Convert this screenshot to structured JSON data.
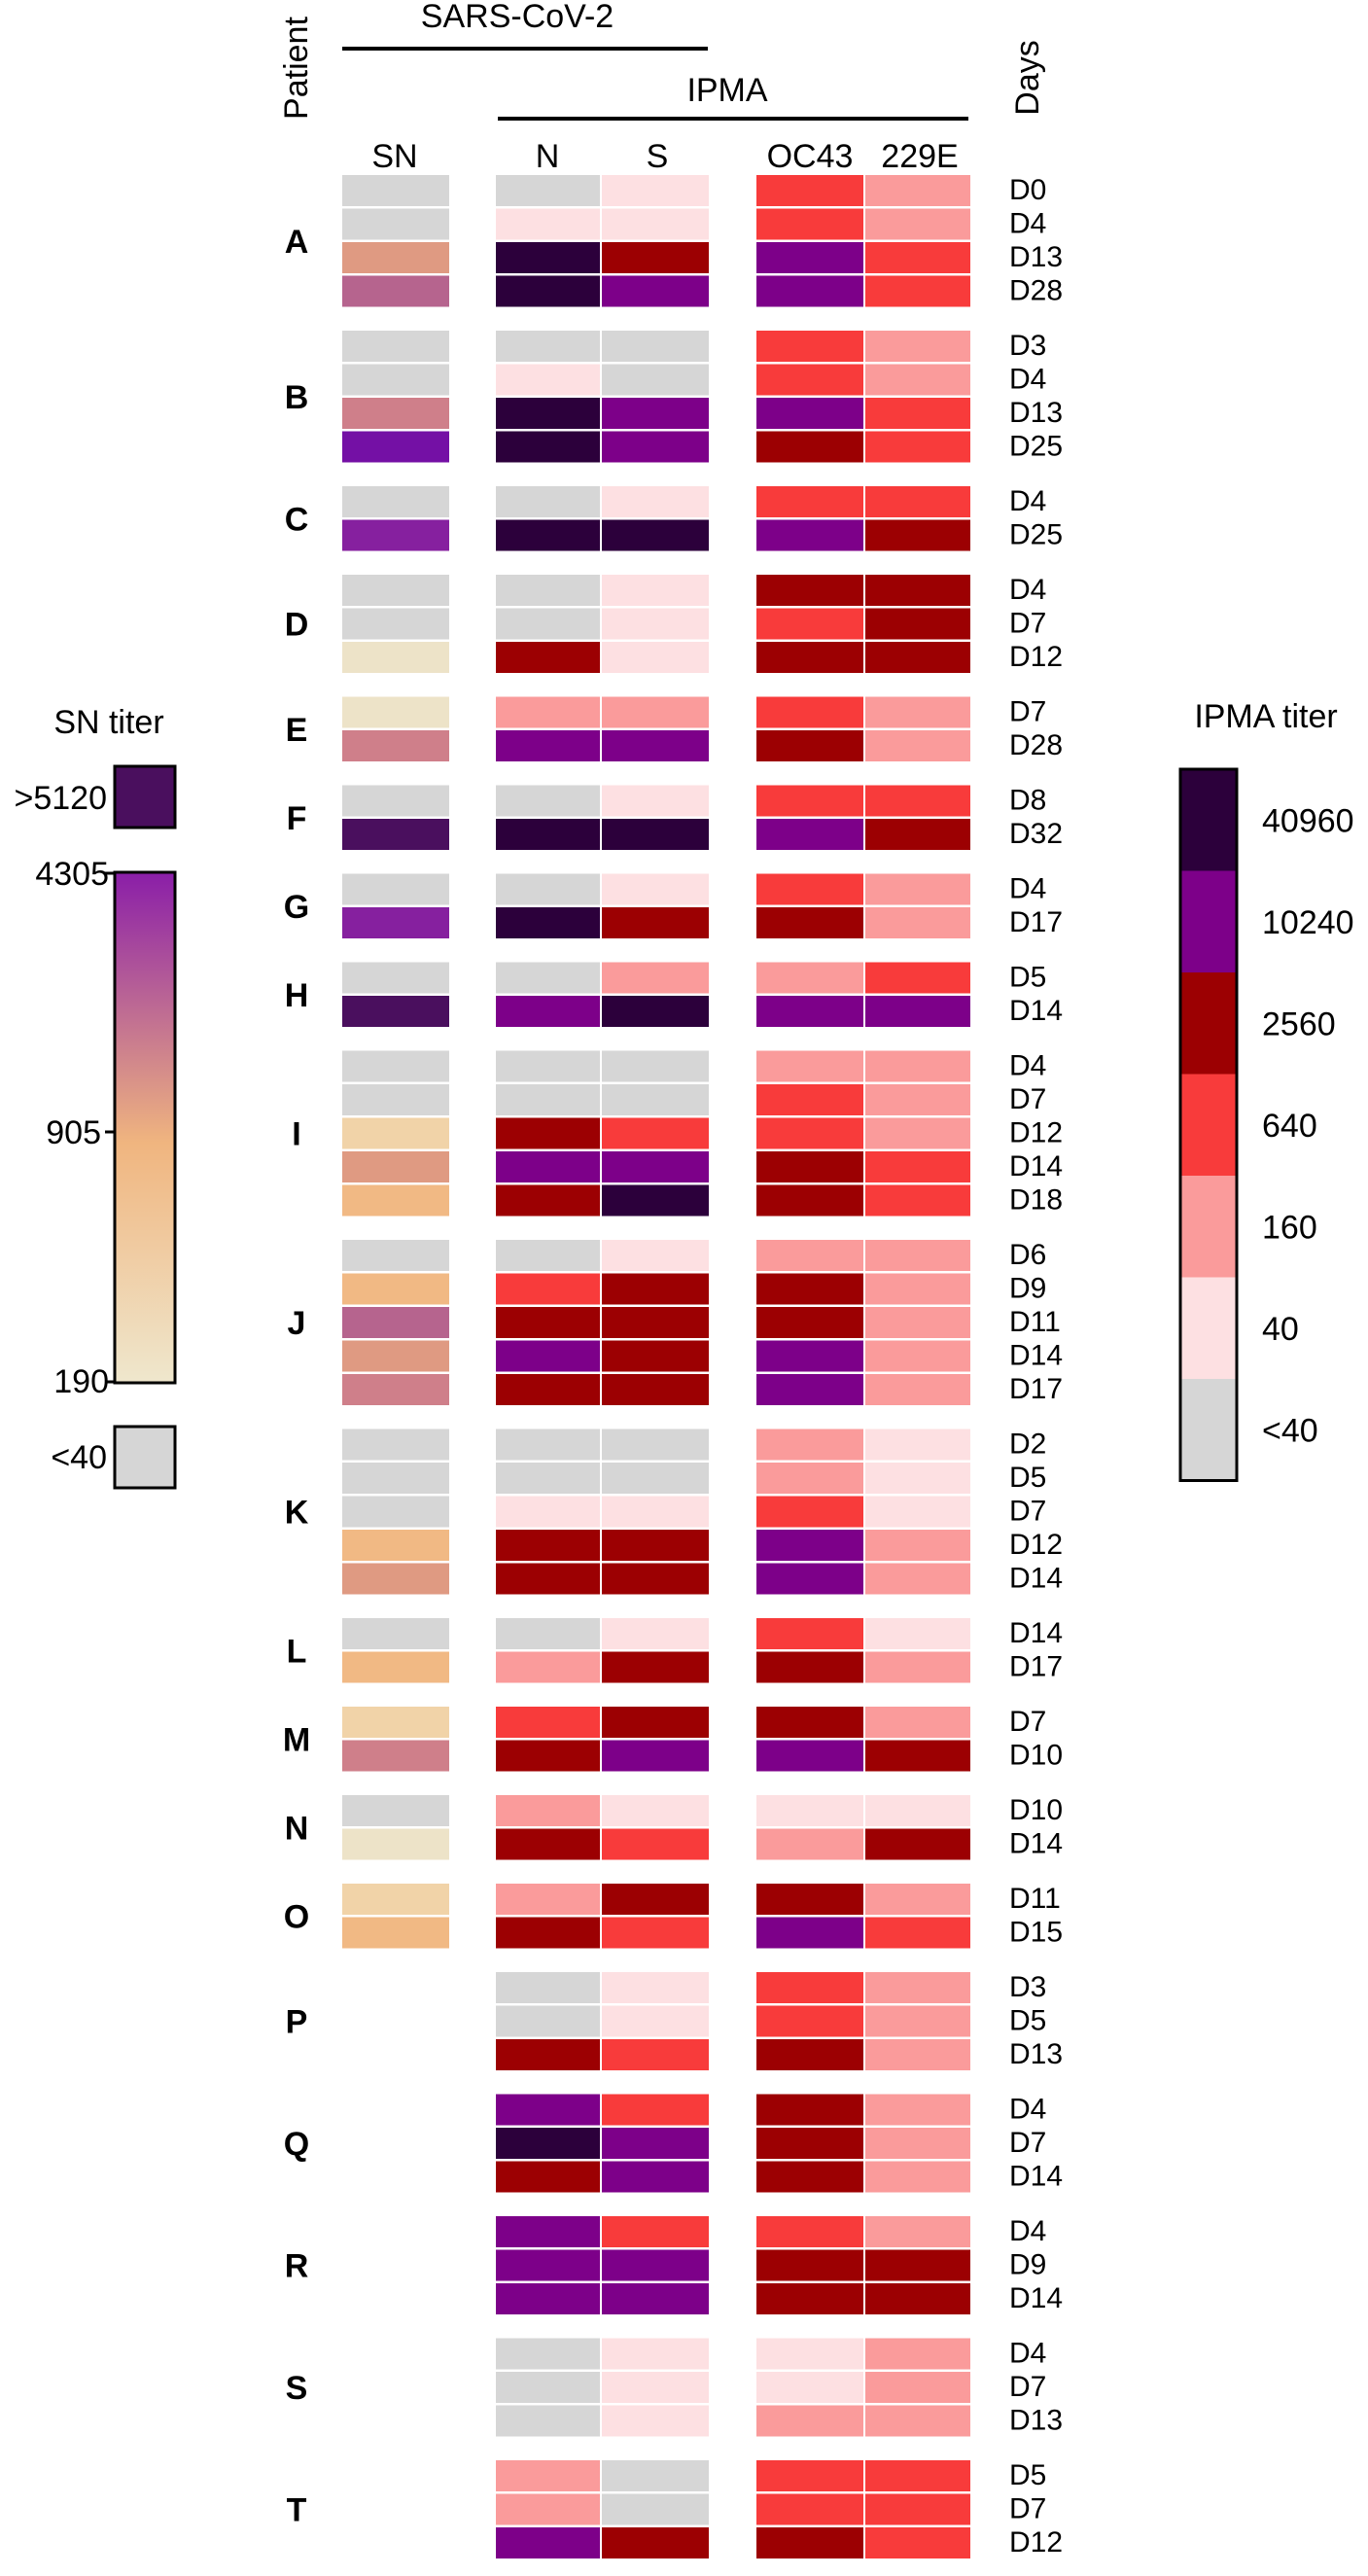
{
  "chart_data": {
    "type": "heatmap",
    "header": {
      "patient_label": "Patient",
      "group_label": "SARS-CoV-2",
      "subgroup_label": "IPMA",
      "days_label": "Days",
      "columns": [
        "SN",
        "N",
        "S",
        "OC43",
        "229E"
      ]
    },
    "legend_sn": {
      "title": "SN titer",
      "top_box_label": ">5120",
      "top_value": "4305",
      "mid_value": "905",
      "bottom_value": "190",
      "below_label": "<40",
      "colors": {
        "above": "#4a0f5e",
        "top": "#8a1ea8",
        "mid": "#f0b57f",
        "bottom": "#efe7cd",
        "below": "#d6d6d6"
      }
    },
    "legend_ipma": {
      "title": "IPMA titer",
      "bands": [
        {
          "label": "40960",
          "color": "#2c003b"
        },
        {
          "label": "10240",
          "color": "#7d0089"
        },
        {
          "label": "2560",
          "color": "#9c0002"
        },
        {
          "label": "640",
          "color": "#f83b3b"
        },
        {
          "label": "160",
          "color": "#fa9b9b"
        },
        {
          "label": "40",
          "color": "#fde0e2"
        },
        {
          "label": "<40",
          "color": "#d6d6d6"
        }
      ]
    },
    "color_key": {
      "g": "#d6d6d6",
      "p": "#fde0e2",
      "l": "#fa9b9b",
      "r": "#f83b3b",
      "d": "#9c0002",
      "v": "#7d0089",
      "k": "#2c003b",
      "s1": "#ede3c8",
      "s2": "#f1d3a8",
      "s3": "#f1b984",
      "s4": "#df9a82",
      "s5": "#cf7f8a",
      "s6": "#b6648e",
      "s7": "#86209f",
      "s8": "#7410a5",
      "s9": "#4a0f5e"
    },
    "patients": [
      {
        "id": "A",
        "rows": [
          {
            "day": "D0",
            "SN": "g",
            "N": "g",
            "S": "p",
            "OC43": "r",
            "E229": "l"
          },
          {
            "day": "D4",
            "SN": "g",
            "N": "p",
            "S": "p",
            "OC43": "r",
            "E229": "l"
          },
          {
            "day": "D13",
            "SN": "s4",
            "N": "k",
            "S": "d",
            "OC43": "v",
            "E229": "r"
          },
          {
            "day": "D28",
            "SN": "s6",
            "N": "k",
            "S": "v",
            "OC43": "v",
            "E229": "r"
          }
        ]
      },
      {
        "id": "B",
        "rows": [
          {
            "day": "D3",
            "SN": "g",
            "N": "g",
            "S": "g",
            "OC43": "r",
            "E229": "l"
          },
          {
            "day": "D4",
            "SN": "g",
            "N": "p",
            "S": "g",
            "OC43": "r",
            "E229": "l"
          },
          {
            "day": "D13",
            "SN": "s5",
            "N": "k",
            "S": "v",
            "OC43": "v",
            "E229": "r"
          },
          {
            "day": "D25",
            "SN": "s8",
            "N": "k",
            "S": "v",
            "OC43": "d",
            "E229": "r"
          }
        ]
      },
      {
        "id": "C",
        "rows": [
          {
            "day": "D4",
            "SN": "g",
            "N": "g",
            "S": "p",
            "OC43": "r",
            "E229": "r"
          },
          {
            "day": "D25",
            "SN": "s7",
            "N": "k",
            "S": "k",
            "OC43": "v",
            "E229": "d"
          }
        ]
      },
      {
        "id": "D",
        "rows": [
          {
            "day": "D4",
            "SN": "g",
            "N": "g",
            "S": "p",
            "OC43": "d",
            "E229": "d"
          },
          {
            "day": "D7",
            "SN": "g",
            "N": "g",
            "S": "p",
            "OC43": "r",
            "E229": "d"
          },
          {
            "day": "D12",
            "SN": "s1",
            "N": "d",
            "S": "p",
            "OC43": "d",
            "E229": "d"
          }
        ]
      },
      {
        "id": "E",
        "rows": [
          {
            "day": "D7",
            "SN": "s1",
            "N": "l",
            "S": "l",
            "OC43": "r",
            "E229": "l"
          },
          {
            "day": "D28",
            "SN": "s5",
            "N": "v",
            "S": "v",
            "OC43": "d",
            "E229": "l"
          }
        ]
      },
      {
        "id": "F",
        "rows": [
          {
            "day": "D8",
            "SN": "g",
            "N": "g",
            "S": "p",
            "OC43": "r",
            "E229": "r"
          },
          {
            "day": "D32",
            "SN": "s9",
            "N": "k",
            "S": "k",
            "OC43": "v",
            "E229": "d"
          }
        ]
      },
      {
        "id": "G",
        "rows": [
          {
            "day": "D4",
            "SN": "g",
            "N": "g",
            "S": "p",
            "OC43": "r",
            "E229": "l"
          },
          {
            "day": "D17",
            "SN": "s7",
            "N": "k",
            "S": "d",
            "OC43": "d",
            "E229": "l"
          }
        ]
      },
      {
        "id": "H",
        "rows": [
          {
            "day": "D5",
            "SN": "g",
            "N": "g",
            "S": "l",
            "OC43": "l",
            "E229": "r"
          },
          {
            "day": "D14",
            "SN": "s9",
            "N": "v",
            "S": "k",
            "OC43": "v",
            "E229": "v"
          }
        ]
      },
      {
        "id": "I",
        "rows": [
          {
            "day": "D4",
            "SN": "g",
            "N": "g",
            "S": "g",
            "OC43": "l",
            "E229": "l"
          },
          {
            "day": "D7",
            "SN": "g",
            "N": "g",
            "S": "g",
            "OC43": "r",
            "E229": "l"
          },
          {
            "day": "D12",
            "SN": "s2",
            "N": "d",
            "S": "r",
            "OC43": "r",
            "E229": "l"
          },
          {
            "day": "D14",
            "SN": "s4",
            "N": "v",
            "S": "v",
            "OC43": "d",
            "E229": "r"
          },
          {
            "day": "D18",
            "SN": "s3",
            "N": "d",
            "S": "k",
            "OC43": "d",
            "E229": "r"
          }
        ]
      },
      {
        "id": "J",
        "rows": [
          {
            "day": "D6",
            "SN": "g",
            "N": "g",
            "S": "p",
            "OC43": "l",
            "E229": "l"
          },
          {
            "day": "D9",
            "SN": "s3",
            "N": "r",
            "S": "d",
            "OC43": "d",
            "E229": "l"
          },
          {
            "day": "D11",
            "SN": "s6",
            "N": "d",
            "S": "d",
            "OC43": "d",
            "E229": "l"
          },
          {
            "day": "D14",
            "SN": "s4",
            "N": "v",
            "S": "d",
            "OC43": "v",
            "E229": "l"
          },
          {
            "day": "D17",
            "SN": "s5",
            "N": "d",
            "S": "d",
            "OC43": "v",
            "E229": "l"
          }
        ]
      },
      {
        "id": "K",
        "rows": [
          {
            "day": "D2",
            "SN": "g",
            "N": "g",
            "S": "g",
            "OC43": "l",
            "E229": "p"
          },
          {
            "day": "D5",
            "SN": "g",
            "N": "g",
            "S": "g",
            "OC43": "l",
            "E229": "p"
          },
          {
            "day": "D7",
            "SN": "g",
            "N": "p",
            "S": "p",
            "OC43": "r",
            "E229": "p"
          },
          {
            "day": "D12",
            "SN": "s3",
            "N": "d",
            "S": "d",
            "OC43": "v",
            "E229": "l"
          },
          {
            "day": "D14",
            "SN": "s4",
            "N": "d",
            "S": "d",
            "OC43": "v",
            "E229": "l"
          }
        ]
      },
      {
        "id": "L",
        "rows": [
          {
            "day": "D14",
            "SN": "g",
            "N": "g",
            "S": "p",
            "OC43": "r",
            "E229": "p"
          },
          {
            "day": "D17",
            "SN": "s3",
            "N": "l",
            "S": "d",
            "OC43": "d",
            "E229": "l"
          }
        ]
      },
      {
        "id": "M",
        "rows": [
          {
            "day": "D7",
            "SN": "s2",
            "N": "r",
            "S": "d",
            "OC43": "d",
            "E229": "l"
          },
          {
            "day": "D10",
            "SN": "s5",
            "N": "d",
            "S": "v",
            "OC43": "v",
            "E229": "d"
          }
        ]
      },
      {
        "id": "N",
        "rows": [
          {
            "day": "D10",
            "SN": "g",
            "N": "l",
            "S": "p",
            "OC43": "p",
            "E229": "p"
          },
          {
            "day": "D14",
            "SN": "s1",
            "N": "d",
            "S": "r",
            "OC43": "l",
            "E229": "d"
          }
        ]
      },
      {
        "id": "O",
        "rows": [
          {
            "day": "D11",
            "SN": "s2",
            "N": "l",
            "S": "d",
            "OC43": "d",
            "E229": "l"
          },
          {
            "day": "D15",
            "SN": "s3",
            "N": "d",
            "S": "r",
            "OC43": "v",
            "E229": "r"
          }
        ]
      },
      {
        "id": "P",
        "rows": [
          {
            "day": "D3",
            "SN": null,
            "N": "g",
            "S": "p",
            "OC43": "r",
            "E229": "l"
          },
          {
            "day": "D5",
            "SN": null,
            "N": "g",
            "S": "p",
            "OC43": "r",
            "E229": "l"
          },
          {
            "day": "D13",
            "SN": null,
            "N": "d",
            "S": "r",
            "OC43": "d",
            "E229": "l"
          }
        ]
      },
      {
        "id": "Q",
        "rows": [
          {
            "day": "D4",
            "SN": null,
            "N": "v",
            "S": "r",
            "OC43": "d",
            "E229": "l"
          },
          {
            "day": "D7",
            "SN": null,
            "N": "k",
            "S": "v",
            "OC43": "d",
            "E229": "l"
          },
          {
            "day": "D14",
            "SN": null,
            "N": "d",
            "S": "v",
            "OC43": "d",
            "E229": "l"
          }
        ]
      },
      {
        "id": "R",
        "rows": [
          {
            "day": "D4",
            "SN": null,
            "N": "v",
            "S": "r",
            "OC43": "r",
            "E229": "l"
          },
          {
            "day": "D9",
            "SN": null,
            "N": "v",
            "S": "v",
            "OC43": "d",
            "E229": "d"
          },
          {
            "day": "D14",
            "SN": null,
            "N": "v",
            "S": "v",
            "OC43": "d",
            "E229": "d"
          }
        ]
      },
      {
        "id": "S",
        "rows": [
          {
            "day": "D4",
            "SN": null,
            "N": "g",
            "S": "p",
            "OC43": "p",
            "E229": "l"
          },
          {
            "day": "D7",
            "SN": null,
            "N": "g",
            "S": "p",
            "OC43": "p",
            "E229": "l"
          },
          {
            "day": "D13",
            "SN": null,
            "N": "g",
            "S": "p",
            "OC43": "l",
            "E229": "l"
          }
        ]
      },
      {
        "id": "T",
        "rows": [
          {
            "day": "D5",
            "SN": null,
            "N": "l",
            "S": "g",
            "OC43": "r",
            "E229": "r"
          },
          {
            "day": "D7",
            "SN": null,
            "N": "l",
            "S": "g",
            "OC43": "r",
            "E229": "r"
          },
          {
            "day": "D12",
            "SN": null,
            "N": "v",
            "S": "d",
            "OC43": "d",
            "E229": "r"
          }
        ]
      }
    ]
  }
}
